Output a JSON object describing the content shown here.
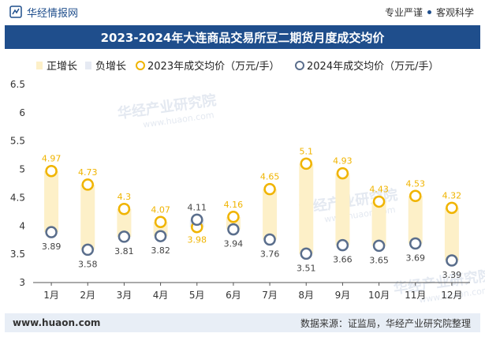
{
  "header": {
    "brand": "华经情报网",
    "slogan_left": "专业严谨",
    "slogan_right": "客观科学"
  },
  "footer": {
    "url": "www.huaon.com",
    "source": "数据来源：证监局，华经产业研究院整理"
  },
  "watermark": "华经产业研究院",
  "watermark_url": "www.huaon.com",
  "colors": {
    "title_bg": "#1f4e8c",
    "pos_bar": "#fdf0c8",
    "neg_bar": "#e6eaf3",
    "s2023": "#f0b400",
    "s2024": "#5a6e8c"
  },
  "chart_data": {
    "type": "line",
    "title": "2023-2024年大连商品交易所豆二期货月度成交均价",
    "categories": [
      "1月",
      "2月",
      "3月",
      "4月",
      "5月",
      "6月",
      "7月",
      "8月",
      "9月",
      "10月",
      "11月",
      "12月"
    ],
    "legend": [
      "正增长",
      "负增长",
      "2023年成交均价（万元/手）",
      "2024年成交均价（万元/手）"
    ],
    "series": [
      {
        "name": "2023年成交均价（万元/手）",
        "values": [
          4.97,
          4.73,
          4.3,
          4.07,
          3.98,
          4.16,
          4.65,
          5.1,
          4.93,
          4.43,
          4.53,
          4.32
        ]
      },
      {
        "name": "2024年成交均价（万元/手）",
        "values": [
          3.89,
          3.58,
          3.81,
          3.82,
          4.11,
          3.94,
          3.76,
          3.51,
          3.66,
          3.65,
          3.69,
          3.39
        ]
      }
    ],
    "ylim": [
      3,
      6.5
    ],
    "yticks": [
      "3",
      "3.5",
      "4",
      "4.5",
      "5",
      "5.5",
      "6",
      "6.5"
    ],
    "xlabel": "",
    "ylabel": ""
  }
}
